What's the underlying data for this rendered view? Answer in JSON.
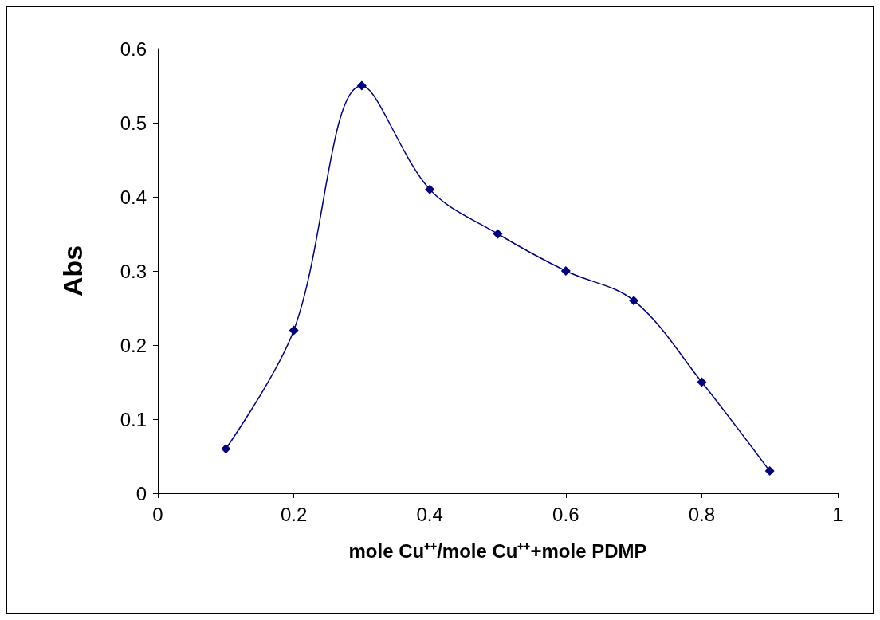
{
  "chart_data": {
    "type": "line",
    "xlabel": "mole Cu⁺⁺/mole Cu⁺⁺+mole PDMP",
    "ylabel": "Abs",
    "x": [
      0.1,
      0.2,
      0.3,
      0.4,
      0.5,
      0.6,
      0.7,
      0.8,
      0.9
    ],
    "series": [
      {
        "color": "#000080",
        "values": [
          0.06,
          0.22,
          0.55,
          0.41,
          0.35,
          0.3,
          0.26,
          0.15,
          0.03
        ]
      }
    ],
    "xlim": [
      0,
      1
    ],
    "xticks": [
      0,
      0.2,
      0.4,
      0.6,
      0.8,
      1
    ],
    "ylim": [
      0,
      0.6
    ],
    "yticks": [
      0,
      0.1,
      0.2,
      0.3,
      0.4,
      0.5,
      0.6
    ],
    "grid": false,
    "marker": "diamond",
    "line_style": "solid"
  }
}
